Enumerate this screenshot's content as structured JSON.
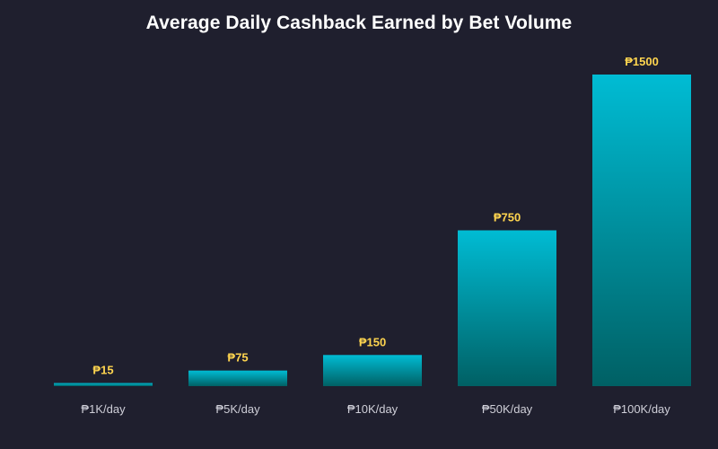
{
  "chart_data": {
    "type": "bar",
    "title": "Average Daily Cashback Earned by Bet Volume",
    "xlabel": "",
    "ylabel": "",
    "categories": [
      "₱1K/day",
      "₱5K/day",
      "₱10K/day",
      "₱50K/day",
      "₱100K/day"
    ],
    "values": [
      15,
      75,
      150,
      750,
      1500
    ],
    "value_labels": [
      "₱15",
      "₱75",
      "₱150",
      "₱750",
      "₱1500"
    ],
    "ylim": [
      0,
      1500
    ],
    "grid": false,
    "legend": "none"
  },
  "colors": {
    "background": "#1f1f2e",
    "title": "#ffffff",
    "bar_top": "#00bcd4",
    "bar_bottom": "#006064",
    "value_label": "#ffd54f",
    "tick_label": "#cfcfd8"
  }
}
